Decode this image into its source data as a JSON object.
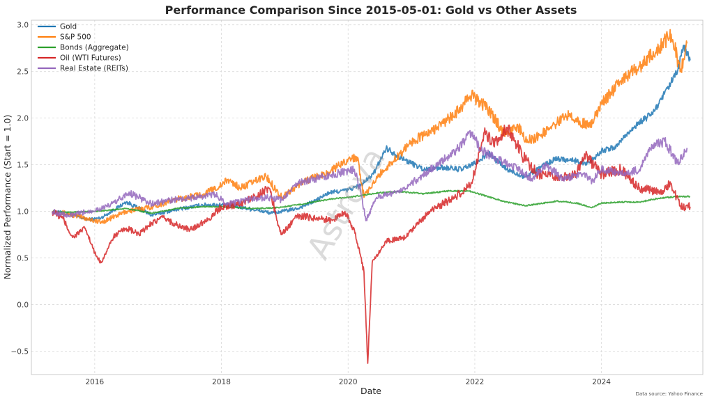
{
  "chart_data": {
    "type": "line",
    "title": "Performance Comparison Since 2015-05-01: Gold vs Other Assets",
    "xlabel": "Date",
    "ylabel": "Normalized Performance (Start = 1.0)",
    "xlim": [
      2015.0,
      2025.6
    ],
    "ylim": [
      -0.75,
      3.05
    ],
    "x_ticks": [
      2016,
      2018,
      2020,
      2022,
      2024
    ],
    "y_ticks": [
      -0.5,
      0.0,
      0.5,
      1.0,
      1.5,
      2.0,
      2.5,
      3.0
    ],
    "y_tick_labels": [
      "−0.5",
      "0.0",
      "0.5",
      "1.0",
      "1.5",
      "2.0",
      "2.5",
      "3.0"
    ],
    "grid": true,
    "legend_position": "top-left",
    "series": [
      {
        "name": "Gold",
        "color": "#1f77b4",
        "points": [
          [
            2015.33,
            1.0
          ],
          [
            2015.6,
            0.97
          ],
          [
            2015.9,
            0.91
          ],
          [
            2016.1,
            0.93
          ],
          [
            2016.5,
            1.1
          ],
          [
            2016.9,
            0.96
          ],
          [
            2017.3,
            1.02
          ],
          [
            2017.7,
            1.07
          ],
          [
            2018.1,
            1.07
          ],
          [
            2018.5,
            1.02
          ],
          [
            2018.8,
            0.98
          ],
          [
            2019.2,
            1.03
          ],
          [
            2019.5,
            1.12
          ],
          [
            2019.7,
            1.2
          ],
          [
            2020.0,
            1.23
          ],
          [
            2020.2,
            1.28
          ],
          [
            2020.4,
            1.4
          ],
          [
            2020.6,
            1.68
          ],
          [
            2020.9,
            1.55
          ],
          [
            2021.2,
            1.45
          ],
          [
            2021.5,
            1.47
          ],
          [
            2021.8,
            1.45
          ],
          [
            2022.1,
            1.55
          ],
          [
            2022.2,
            1.63
          ],
          [
            2022.5,
            1.45
          ],
          [
            2022.8,
            1.37
          ],
          [
            2023.1,
            1.5
          ],
          [
            2023.3,
            1.57
          ],
          [
            2023.5,
            1.55
          ],
          [
            2023.8,
            1.52
          ],
          [
            2024.0,
            1.65
          ],
          [
            2024.2,
            1.68
          ],
          [
            2024.5,
            1.9
          ],
          [
            2024.8,
            2.05
          ],
          [
            2024.95,
            2.2
          ],
          [
            2025.2,
            2.5
          ],
          [
            2025.3,
            2.78
          ],
          [
            2025.4,
            2.62
          ]
        ]
      },
      {
        "name": "S&P 500",
        "color": "#ff7f0e",
        "points": [
          [
            2015.33,
            1.0
          ],
          [
            2015.6,
            0.97
          ],
          [
            2015.9,
            0.92
          ],
          [
            2016.1,
            0.88
          ],
          [
            2016.5,
            1.0
          ],
          [
            2016.9,
            1.05
          ],
          [
            2017.3,
            1.13
          ],
          [
            2017.7,
            1.18
          ],
          [
            2018.0,
            1.28
          ],
          [
            2018.1,
            1.34
          ],
          [
            2018.3,
            1.25
          ],
          [
            2018.7,
            1.38
          ],
          [
            2018.95,
            1.15
          ],
          [
            2019.3,
            1.32
          ],
          [
            2019.7,
            1.42
          ],
          [
            2020.0,
            1.56
          ],
          [
            2020.15,
            1.58
          ],
          [
            2020.25,
            1.15
          ],
          [
            2020.5,
            1.4
          ],
          [
            2020.8,
            1.6
          ],
          [
            2021.0,
            1.75
          ],
          [
            2021.3,
            1.85
          ],
          [
            2021.7,
            2.05
          ],
          [
            2021.95,
            2.25
          ],
          [
            2022.2,
            2.1
          ],
          [
            2022.45,
            1.85
          ],
          [
            2022.7,
            1.9
          ],
          [
            2022.8,
            1.75
          ],
          [
            2023.0,
            1.8
          ],
          [
            2023.3,
            1.95
          ],
          [
            2023.5,
            2.05
          ],
          [
            2023.8,
            1.9
          ],
          [
            2024.0,
            2.15
          ],
          [
            2024.3,
            2.4
          ],
          [
            2024.6,
            2.55
          ],
          [
            2024.9,
            2.75
          ],
          [
            2025.1,
            2.9
          ],
          [
            2025.25,
            2.5
          ],
          [
            2025.35,
            2.8
          ]
        ]
      },
      {
        "name": "Bonds (Aggregate)",
        "color": "#2ca02c",
        "points": [
          [
            2015.33,
            1.0
          ],
          [
            2015.6,
            0.99
          ],
          [
            2016.0,
            1.0
          ],
          [
            2016.5,
            1.03
          ],
          [
            2016.9,
            0.98
          ],
          [
            2017.3,
            1.03
          ],
          [
            2017.7,
            1.05
          ],
          [
            2018.0,
            1.05
          ],
          [
            2018.5,
            1.03
          ],
          [
            2018.9,
            1.04
          ],
          [
            2019.3,
            1.08
          ],
          [
            2019.7,
            1.13
          ],
          [
            2020.0,
            1.15
          ],
          [
            2020.2,
            1.17
          ],
          [
            2020.5,
            1.2
          ],
          [
            2020.8,
            1.21
          ],
          [
            2021.2,
            1.19
          ],
          [
            2021.6,
            1.22
          ],
          [
            2021.9,
            1.22
          ],
          [
            2022.2,
            1.16
          ],
          [
            2022.5,
            1.1
          ],
          [
            2022.8,
            1.06
          ],
          [
            2023.0,
            1.08
          ],
          [
            2023.3,
            1.11
          ],
          [
            2023.6,
            1.09
          ],
          [
            2023.85,
            1.04
          ],
          [
            2024.0,
            1.09
          ],
          [
            2024.3,
            1.1
          ],
          [
            2024.6,
            1.1
          ],
          [
            2024.9,
            1.14
          ],
          [
            2025.2,
            1.16
          ],
          [
            2025.4,
            1.16
          ]
        ]
      },
      {
        "name": "Oil (WTI Futures)",
        "color": "#d62728",
        "points": [
          [
            2015.33,
            1.0
          ],
          [
            2015.5,
            0.92
          ],
          [
            2015.65,
            0.72
          ],
          [
            2015.85,
            0.82
          ],
          [
            2016.0,
            0.55
          ],
          [
            2016.1,
            0.45
          ],
          [
            2016.3,
            0.73
          ],
          [
            2016.5,
            0.82
          ],
          [
            2016.7,
            0.75
          ],
          [
            2016.9,
            0.88
          ],
          [
            2017.1,
            0.93
          ],
          [
            2017.3,
            0.85
          ],
          [
            2017.5,
            0.8
          ],
          [
            2017.8,
            0.92
          ],
          [
            2018.0,
            1.05
          ],
          [
            2018.3,
            1.08
          ],
          [
            2018.5,
            1.15
          ],
          [
            2018.75,
            1.25
          ],
          [
            2018.95,
            0.75
          ],
          [
            2019.2,
            0.95
          ],
          [
            2019.5,
            0.93
          ],
          [
            2019.75,
            0.9
          ],
          [
            2019.95,
            1.0
          ],
          [
            2020.1,
            0.8
          ],
          [
            2020.25,
            0.35
          ],
          [
            2020.31,
            -0.63
          ],
          [
            2020.38,
            0.45
          ],
          [
            2020.6,
            0.68
          ],
          [
            2020.9,
            0.72
          ],
          [
            2021.1,
            0.88
          ],
          [
            2021.4,
            1.05
          ],
          [
            2021.7,
            1.15
          ],
          [
            2021.95,
            1.3
          ],
          [
            2022.15,
            1.85
          ],
          [
            2022.3,
            1.7
          ],
          [
            2022.5,
            1.9
          ],
          [
            2022.8,
            1.55
          ],
          [
            2023.0,
            1.4
          ],
          [
            2023.3,
            1.35
          ],
          [
            2023.6,
            1.4
          ],
          [
            2023.75,
            1.6
          ],
          [
            2024.0,
            1.4
          ],
          [
            2024.3,
            1.45
          ],
          [
            2024.6,
            1.25
          ],
          [
            2024.9,
            1.2
          ],
          [
            2025.1,
            1.3
          ],
          [
            2025.25,
            1.05
          ],
          [
            2025.4,
            1.05
          ]
        ]
      },
      {
        "name": "Real Estate (REITs)",
        "color": "#9467bd",
        "points": [
          [
            2015.33,
            1.0
          ],
          [
            2015.6,
            0.95
          ],
          [
            2015.9,
            1.0
          ],
          [
            2016.2,
            1.05
          ],
          [
            2016.55,
            1.2
          ],
          [
            2016.9,
            1.08
          ],
          [
            2017.2,
            1.12
          ],
          [
            2017.6,
            1.15
          ],
          [
            2017.9,
            1.18
          ],
          [
            2018.1,
            1.08
          ],
          [
            2018.4,
            1.12
          ],
          [
            2018.7,
            1.15
          ],
          [
            2018.95,
            1.12
          ],
          [
            2019.2,
            1.3
          ],
          [
            2019.5,
            1.35
          ],
          [
            2019.8,
            1.4
          ],
          [
            2020.1,
            1.45
          ],
          [
            2020.2,
            1.2
          ],
          [
            2020.28,
            0.9
          ],
          [
            2020.45,
            1.15
          ],
          [
            2020.8,
            1.22
          ],
          [
            2021.0,
            1.3
          ],
          [
            2021.4,
            1.5
          ],
          [
            2021.7,
            1.65
          ],
          [
            2021.95,
            1.85
          ],
          [
            2022.1,
            1.65
          ],
          [
            2022.4,
            1.55
          ],
          [
            2022.7,
            1.45
          ],
          [
            2022.9,
            1.35
          ],
          [
            2023.1,
            1.5
          ],
          [
            2023.4,
            1.35
          ],
          [
            2023.7,
            1.4
          ],
          [
            2023.85,
            1.32
          ],
          [
            2024.0,
            1.45
          ],
          [
            2024.3,
            1.4
          ],
          [
            2024.6,
            1.45
          ],
          [
            2024.8,
            1.7
          ],
          [
            2025.0,
            1.75
          ],
          [
            2025.2,
            1.52
          ],
          [
            2025.35,
            1.68
          ]
        ]
      }
    ],
    "source_note": "Data source: Yahoo Finance",
    "watermark": "Astrova"
  }
}
